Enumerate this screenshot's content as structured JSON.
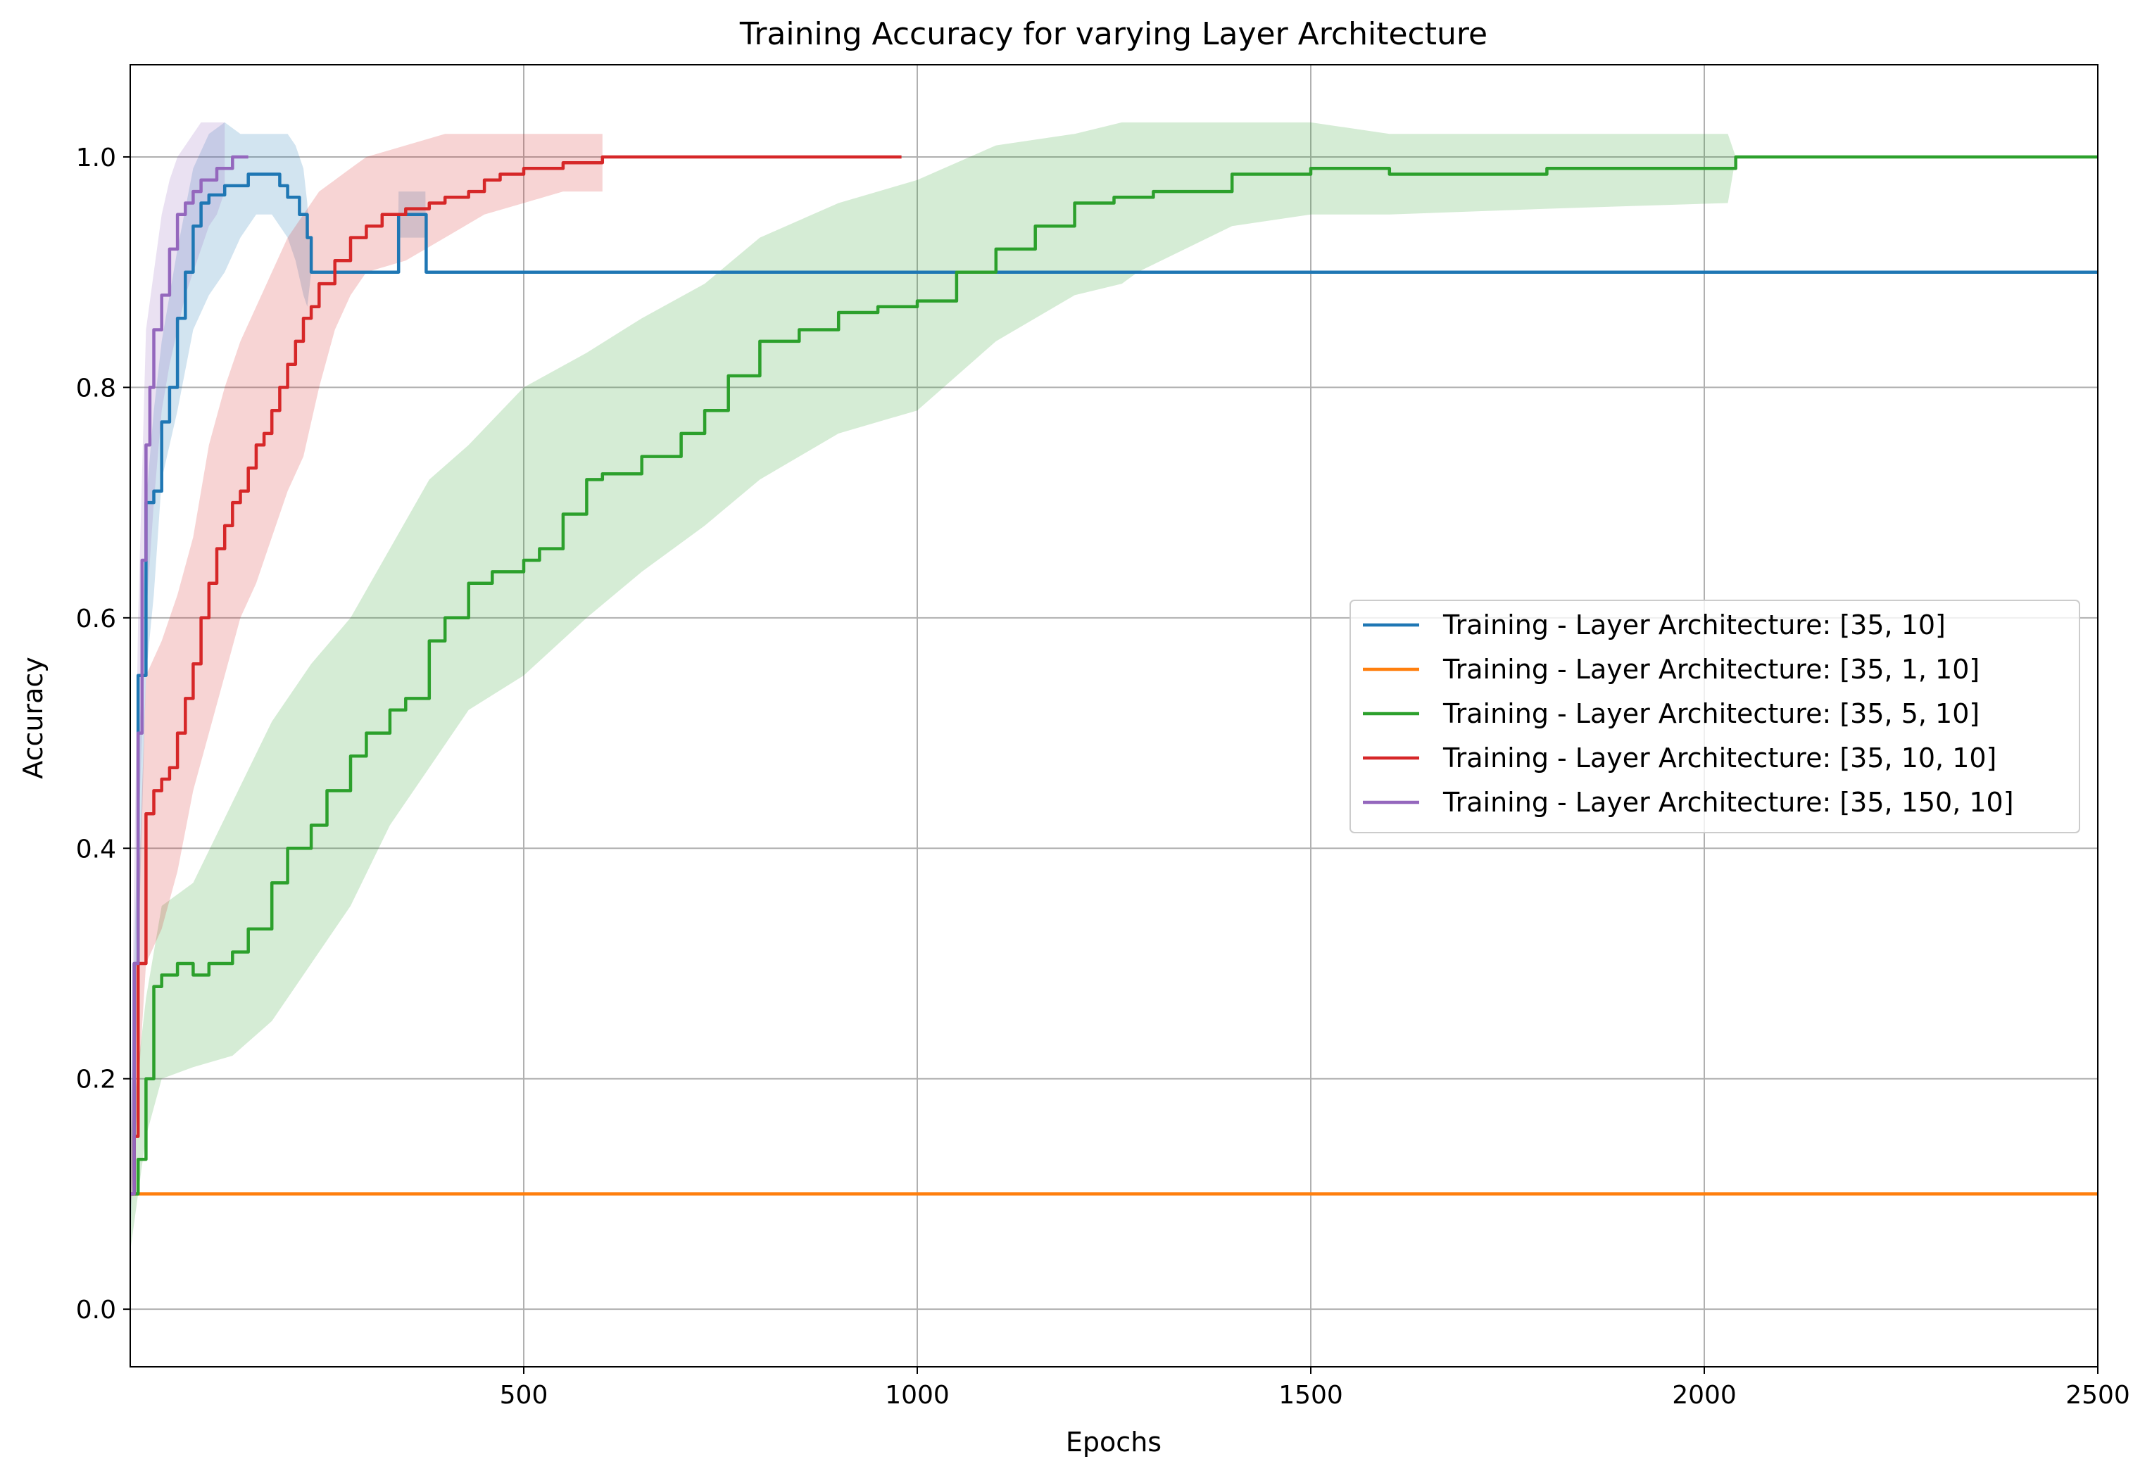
{
  "chart_data": {
    "type": "line",
    "title": "Training Accuracy for varying Layer Architecture",
    "xlabel": "Epochs",
    "ylabel": "Accuracy",
    "xlim": [
      0,
      2500
    ],
    "ylim": [
      -0.05,
      1.08
    ],
    "xticks": [
      500,
      1000,
      1500,
      2000,
      2500
    ],
    "yticks": [
      0.0,
      0.2,
      0.4,
      0.6,
      0.8,
      1.0
    ],
    "xtick_labels": [
      "500",
      "1000",
      "1500",
      "2000",
      "2500"
    ],
    "ytick_labels": [
      "0.0",
      "0.2",
      "0.4",
      "0.6",
      "0.8",
      "1.0"
    ],
    "grid": true,
    "legend_position": "center-right",
    "series": [
      {
        "name": "Training - Layer Architecture: [35, 10]",
        "color": "#1f77b4",
        "x": [
          0,
          5,
          10,
          20,
          30,
          40,
          50,
          60,
          70,
          80,
          90,
          100,
          110,
          120,
          130,
          150,
          160,
          170,
          190,
          200,
          215,
          225,
          230,
          240,
          340,
          341,
          375,
          376,
          2500
        ],
        "y": [
          0.1,
          0.3,
          0.55,
          0.7,
          0.71,
          0.77,
          0.8,
          0.86,
          0.9,
          0.94,
          0.96,
          0.967,
          0.967,
          0.975,
          0.975,
          0.985,
          0.985,
          0.985,
          0.975,
          0.965,
          0.95,
          0.93,
          0.9,
          0.9,
          0.9,
          0.95,
          0.95,
          0.9,
          0.9
        ],
        "band_x": [
          0,
          10,
          20,
          30,
          40,
          50,
          60,
          80,
          100,
          120,
          140,
          160,
          180,
          200,
          210,
          220,
          225,
          230,
          240,
          340,
          341,
          375,
          376,
          2500
        ],
        "band_lo": [
          0.05,
          0.3,
          0.55,
          0.62,
          0.72,
          0.75,
          0.78,
          0.85,
          0.88,
          0.9,
          0.93,
          0.95,
          0.95,
          0.93,
          0.91,
          0.88,
          0.87,
          0.9,
          0.9,
          0.9,
          0.93,
          0.93,
          0.9,
          0.9
        ],
        "band_hi": [
          0.15,
          0.45,
          0.7,
          0.78,
          0.84,
          0.88,
          0.92,
          0.99,
          1.02,
          1.03,
          1.02,
          1.02,
          1.02,
          1.02,
          1.01,
          0.99,
          0.96,
          0.9,
          0.9,
          0.9,
          0.97,
          0.97,
          0.9,
          0.9
        ]
      },
      {
        "name": "Training - Layer Architecture: [35, 1, 10]",
        "color": "#ff7f0e",
        "x": [
          0,
          2500
        ],
        "y": [
          0.1,
          0.1
        ]
      },
      {
        "name": "Training - Layer Architecture: [35, 5, 10]",
        "color": "#2ca02c",
        "x": [
          0,
          10,
          20,
          30,
          40,
          60,
          80,
          100,
          130,
          150,
          180,
          200,
          230,
          250,
          280,
          300,
          330,
          350,
          380,
          400,
          430,
          460,
          500,
          520,
          550,
          580,
          600,
          650,
          700,
          730,
          760,
          800,
          850,
          900,
          950,
          1000,
          1050,
          1100,
          1150,
          1200,
          1250,
          1300,
          1400,
          1500,
          1550,
          1600,
          1700,
          1800,
          1900,
          2030,
          2040,
          2500
        ],
        "y": [
          0.1,
          0.13,
          0.2,
          0.28,
          0.29,
          0.3,
          0.29,
          0.3,
          0.31,
          0.33,
          0.37,
          0.4,
          0.42,
          0.45,
          0.48,
          0.5,
          0.52,
          0.53,
          0.58,
          0.6,
          0.63,
          0.64,
          0.65,
          0.66,
          0.69,
          0.72,
          0.725,
          0.74,
          0.76,
          0.78,
          0.81,
          0.84,
          0.85,
          0.865,
          0.87,
          0.875,
          0.9,
          0.92,
          0.94,
          0.96,
          0.965,
          0.97,
          0.985,
          0.99,
          0.99,
          0.985,
          0.985,
          0.99,
          0.99,
          0.99,
          1.0,
          1.0
        ],
        "band_x": [
          0,
          20,
          40,
          80,
          130,
          180,
          230,
          280,
          330,
          380,
          430,
          500,
          580,
          650,
          730,
          800,
          900,
          1000,
          1100,
          1200,
          1260,
          1280,
          1400,
          1500,
          1600,
          1800,
          2030,
          2040,
          2500
        ],
        "band_lo": [
          0.05,
          0.15,
          0.2,
          0.21,
          0.22,
          0.25,
          0.3,
          0.35,
          0.42,
          0.47,
          0.52,
          0.55,
          0.6,
          0.64,
          0.68,
          0.72,
          0.76,
          0.78,
          0.84,
          0.88,
          0.89,
          0.9,
          0.94,
          0.95,
          0.95,
          0.955,
          0.96,
          1.0,
          1.0
        ],
        "band_hi": [
          0.15,
          0.27,
          0.35,
          0.37,
          0.44,
          0.51,
          0.56,
          0.6,
          0.66,
          0.72,
          0.75,
          0.8,
          0.83,
          0.86,
          0.89,
          0.93,
          0.96,
          0.98,
          1.01,
          1.02,
          1.03,
          1.03,
          1.03,
          1.03,
          1.02,
          1.02,
          1.02,
          1.0,
          1.0
        ]
      },
      {
        "name": "Training - Layer Architecture: [35, 10, 10]",
        "color": "#d62728",
        "x": [
          0,
          5,
          10,
          20,
          30,
          40,
          50,
          60,
          70,
          80,
          90,
          100,
          110,
          120,
          130,
          140,
          150,
          160,
          170,
          180,
          190,
          200,
          210,
          220,
          230,
          240,
          260,
          280,
          300,
          320,
          350,
          380,
          400,
          430,
          450,
          470,
          500,
          550,
          580,
          600,
          700,
          800,
          900,
          980
        ],
        "y": [
          0.1,
          0.15,
          0.3,
          0.43,
          0.45,
          0.46,
          0.47,
          0.5,
          0.53,
          0.56,
          0.6,
          0.63,
          0.66,
          0.68,
          0.7,
          0.71,
          0.73,
          0.75,
          0.76,
          0.78,
          0.8,
          0.82,
          0.84,
          0.86,
          0.87,
          0.89,
          0.91,
          0.93,
          0.94,
          0.95,
          0.955,
          0.96,
          0.965,
          0.97,
          0.98,
          0.985,
          0.99,
          0.995,
          0.995,
          1.0,
          1.0,
          1.0,
          1.0,
          1.0
        ],
        "band_x": [
          0,
          20,
          40,
          60,
          80,
          100,
          120,
          140,
          160,
          180,
          200,
          220,
          240,
          260,
          280,
          300,
          350,
          400,
          450,
          500,
          550,
          600
        ],
        "band_lo": [
          0.08,
          0.3,
          0.33,
          0.38,
          0.45,
          0.5,
          0.55,
          0.6,
          0.63,
          0.67,
          0.71,
          0.74,
          0.8,
          0.85,
          0.88,
          0.9,
          0.91,
          0.93,
          0.95,
          0.96,
          0.97,
          0.97
        ],
        "band_hi": [
          0.15,
          0.55,
          0.58,
          0.62,
          0.67,
          0.75,
          0.8,
          0.84,
          0.87,
          0.9,
          0.93,
          0.95,
          0.97,
          0.98,
          0.99,
          1.0,
          1.01,
          1.02,
          1.02,
          1.02,
          1.02,
          1.02
        ]
      },
      {
        "name": "Training - Layer Architecture: [35, 150, 10]",
        "color": "#9467bd",
        "x": [
          0,
          5,
          10,
          15,
          20,
          25,
          30,
          40,
          50,
          60,
          70,
          80,
          90,
          100,
          110,
          120,
          130,
          140,
          150
        ],
        "y": [
          0.1,
          0.3,
          0.5,
          0.65,
          0.75,
          0.8,
          0.85,
          0.88,
          0.92,
          0.95,
          0.96,
          0.97,
          0.98,
          0.98,
          0.99,
          0.99,
          1.0,
          1.0,
          1.0
        ],
        "band_x": [
          0,
          10,
          20,
          30,
          40,
          50,
          60,
          70,
          80,
          90,
          100,
          110,
          120
        ],
        "band_lo": [
          0.05,
          0.4,
          0.6,
          0.7,
          0.78,
          0.82,
          0.85,
          0.88,
          0.9,
          0.92,
          0.94,
          0.95,
          0.97
        ],
        "band_hi": [
          0.15,
          0.6,
          0.85,
          0.9,
          0.95,
          0.98,
          1.0,
          1.01,
          1.02,
          1.03,
          1.03,
          1.03,
          1.03
        ]
      }
    ]
  }
}
